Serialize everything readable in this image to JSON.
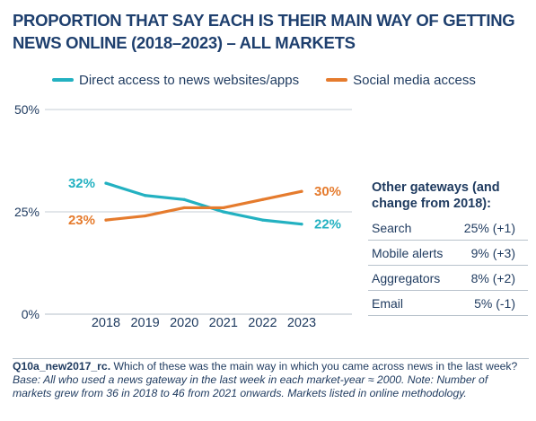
{
  "title": "PROPORTION THAT SAY EACH IS THEIR MAIN WAY OF GETTING NEWS ONLINE (2018–2023) – ALL MARKETS",
  "legend": {
    "direct": "Direct access to news websites/apps",
    "social": "Social media access"
  },
  "colors": {
    "direct": "#23b1c1",
    "social": "#e57b2d",
    "text": "#1e3a5f",
    "title": "#1e3f6e"
  },
  "chart_data": {
    "type": "line",
    "title": "PROPORTION THAT SAY EACH IS THEIR MAIN WAY OF GETTING NEWS ONLINE (2018–2023) – ALL MARKETS",
    "x": [
      "2018",
      "2019",
      "2020",
      "2021",
      "2022",
      "2023"
    ],
    "ylim": [
      0,
      50
    ],
    "yticks": [
      "0%",
      "25%",
      "50%"
    ],
    "series": [
      {
        "name": "Direct access to news websites/apps",
        "color": "#23b1c1",
        "values": [
          32,
          29,
          28,
          25,
          23,
          22
        ],
        "start_label": "32%",
        "end_label": "22%"
      },
      {
        "name": "Social media access",
        "color": "#e57b2d",
        "values": [
          23,
          24,
          26,
          26,
          28,
          30
        ],
        "start_label": "23%",
        "end_label": "30%"
      }
    ]
  },
  "gateways": {
    "title": "Other gateways (and change from 2018):",
    "rows": [
      {
        "name": "Search",
        "value": "25% (+1)"
      },
      {
        "name": "Mobile alerts",
        "value": "9% (+3)"
      },
      {
        "name": "Aggregators",
        "value": "8% (+2)"
      },
      {
        "name": "Email",
        "value": "5% (-1)"
      }
    ]
  },
  "footnote": {
    "code": "Q10a_new2017_rc.",
    "question": " Which of these was the main way in which you came across news in the last week? ",
    "base": "Base: All who used a news gateway in the last week in each market-year ≈ 2000. Note: Number of markets grew from 36 in 2018 to 46 from 2021 onwards. Markets listed in online methodology."
  }
}
